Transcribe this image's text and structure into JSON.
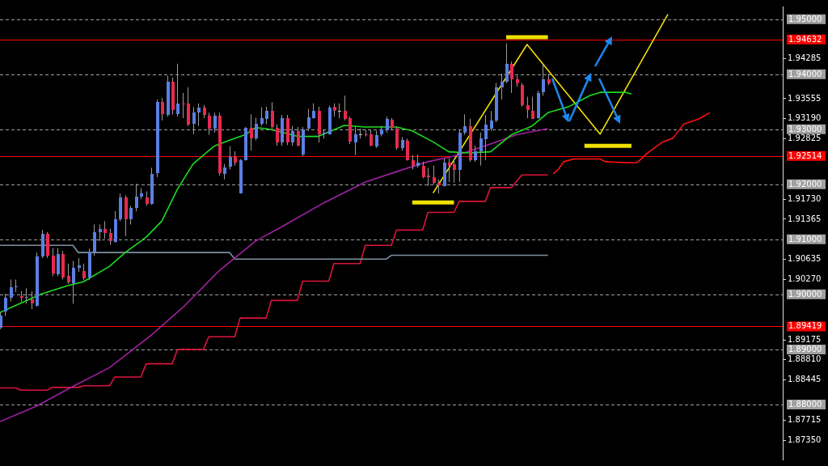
{
  "chart_data": {
    "type": "candlestick",
    "categories": [
      null,
      null,
      null,
      null,
      null,
      null,
      null,
      null,
      null,
      null,
      null,
      null,
      null,
      null,
      null,
      null,
      null,
      null,
      null,
      null,
      null,
      null,
      null,
      null,
      null,
      null,
      null,
      null,
      null,
      null,
      null,
      null,
      null,
      null,
      null,
      null,
      null,
      null,
      null,
      null,
      null,
      null,
      null,
      null,
      null,
      null,
      null,
      null,
      null,
      null,
      null,
      null,
      null,
      null,
      null,
      null,
      null,
      null,
      null,
      null,
      null,
      null,
      null,
      null,
      null,
      null,
      null,
      null,
      null,
      null,
      null,
      null,
      null,
      null,
      null,
      null,
      null,
      null,
      null,
      null,
      null,
      null,
      null,
      null,
      null,
      null,
      null,
      null,
      null,
      null,
      null,
      null,
      null,
      null,
      null,
      null,
      null,
      null,
      null,
      null,
      null,
      null,
      null,
      null,
      null,
      null,
      null,
      null,
      null,
      null,
      null,
      null,
      null,
      null,
      null,
      null,
      null,
      null,
      null,
      null,
      null,
      null,
      null,
      null,
      null,
      null,
      null,
      null,
      null,
      null,
      null,
      null,
      null,
      null,
      null,
      null,
      null,
      null,
      null,
      null,
      null,
      null,
      null,
      null,
      null,
      null,
      null,
      null,
      null,
      null,
      null
    ],
    "ohlc": [
      [
        1.8939,
        1.8967,
        1.8937,
        1.8961
      ],
      [
        1.8969,
        1.9001,
        1.8961,
        1.8994
      ],
      [
        1.8994,
        1.9027,
        1.8987,
        1.9013
      ],
      [
        1.9013,
        1.9027,
        1.9004,
        1.9014
      ],
      [
        1.8997,
        1.9006,
        1.8987,
        1.8994
      ],
      [
        1.8994,
        1.9011,
        1.8983,
        1.8995
      ],
      [
        1.8991,
        1.9006,
        1.8973,
        1.8983
      ],
      [
        1.898,
        1.9076,
        1.8978,
        1.9069
      ],
      [
        1.9069,
        1.9117,
        1.9066,
        1.911
      ],
      [
        1.911,
        1.9113,
        1.9066,
        1.907
      ],
      [
        1.907,
        1.9084,
        1.9033,
        1.9037
      ],
      [
        1.9037,
        1.9084,
        1.9033,
        1.9074
      ],
      [
        1.9074,
        1.9079,
        1.9027,
        1.9031
      ],
      [
        1.9033,
        1.9056,
        1.9019,
        1.9021
      ],
      [
        1.9021,
        1.9061,
        1.8983,
        1.9049
      ],
      [
        1.9049,
        1.9066,
        1.9041,
        1.9053
      ],
      [
        1.9043,
        1.9056,
        1.9026,
        1.903
      ],
      [
        1.903,
        1.9083,
        1.9026,
        1.9076
      ],
      [
        1.9076,
        1.9127,
        1.907,
        1.9113
      ],
      [
        1.9113,
        1.9127,
        1.9097,
        1.9119
      ],
      [
        1.9119,
        1.9133,
        1.9101,
        1.9111
      ],
      [
        1.9111,
        1.9119,
        1.909,
        1.9096
      ],
      [
        1.9096,
        1.9151,
        1.9094,
        1.9137
      ],
      [
        1.9137,
        1.9183,
        1.9133,
        1.9176
      ],
      [
        1.9176,
        1.918,
        1.9106,
        1.9136
      ],
      [
        1.9136,
        1.9161,
        1.9127,
        1.9157
      ],
      [
        1.9157,
        1.9201,
        1.9151,
        1.9177
      ],
      [
        1.9177,
        1.9193,
        1.9173,
        1.9183
      ],
      [
        1.9176,
        1.9187,
        1.9161,
        1.9164
      ],
      [
        1.9164,
        1.923,
        1.9163,
        1.9219
      ],
      [
        1.922,
        1.9354,
        1.9213,
        1.935
      ],
      [
        1.9349,
        1.9357,
        1.9316,
        1.9327
      ],
      [
        1.9326,
        1.9397,
        1.9323,
        1.9386
      ],
      [
        1.9386,
        1.9394,
        1.9327,
        1.9334
      ],
      [
        1.9327,
        1.9419,
        1.9323,
        1.9346
      ],
      [
        1.9347,
        1.9366,
        1.932,
        1.9346
      ],
      [
        1.9347,
        1.9376,
        1.9306,
        1.9309
      ],
      [
        1.9309,
        1.934,
        1.9291,
        1.933
      ],
      [
        1.933,
        1.9347,
        1.9306,
        1.9339
      ],
      [
        1.9339,
        1.9344,
        1.932,
        1.9326
      ],
      [
        1.9324,
        1.933,
        1.929,
        1.93
      ],
      [
        1.93,
        1.933,
        1.9294,
        1.9324
      ],
      [
        1.9324,
        1.933,
        1.9216,
        1.9219
      ],
      [
        1.9219,
        1.9237,
        1.9209,
        1.9231
      ],
      [
        1.9231,
        1.9269,
        1.9227,
        1.9249
      ],
      [
        1.9249,
        1.926,
        1.9234,
        1.9239
      ],
      [
        1.9184,
        1.9246,
        1.9183,
        1.9244
      ],
      [
        1.9244,
        1.9304,
        1.9243,
        1.9303
      ],
      [
        1.9303,
        1.9327,
        1.9261,
        1.9284
      ],
      [
        1.9284,
        1.9321,
        1.928,
        1.931
      ],
      [
        1.931,
        1.934,
        1.9306,
        1.932
      ],
      [
        1.9319,
        1.9341,
        1.9309,
        1.9333
      ],
      [
        1.9333,
        1.9349,
        1.9299,
        1.9303
      ],
      [
        1.9303,
        1.9309,
        1.927,
        1.9276
      ],
      [
        1.9276,
        1.9326,
        1.927,
        1.932
      ],
      [
        1.932,
        1.9326,
        1.9271,
        1.9276
      ],
      [
        1.9276,
        1.9306,
        1.927,
        1.9297
      ],
      [
        1.9297,
        1.9304,
        1.9269,
        1.9271
      ],
      [
        1.9253,
        1.9304,
        1.9251,
        1.9299
      ],
      [
        1.93,
        1.9337,
        1.9297,
        1.9321
      ],
      [
        1.9321,
        1.9347,
        1.9319,
        1.9334
      ],
      [
        1.9334,
        1.9341,
        1.9276,
        1.9291
      ],
      [
        1.9291,
        1.9299,
        1.9283,
        1.9294
      ],
      [
        1.9291,
        1.9343,
        1.929,
        1.9339
      ],
      [
        1.9341,
        1.9347,
        1.9323,
        1.9333
      ],
      [
        1.9333,
        1.9347,
        1.932,
        1.9333
      ],
      [
        1.9333,
        1.9361,
        1.9316,
        1.9319
      ],
      [
        1.932,
        1.9323,
        1.9273,
        1.9277
      ],
      [
        1.9277,
        1.9304,
        1.9253,
        1.9291
      ],
      [
        1.9291,
        1.9301,
        1.9283,
        1.9291
      ],
      [
        1.9291,
        1.9299,
        1.9287,
        1.929
      ],
      [
        1.9291,
        1.9299,
        1.9269,
        1.927
      ],
      [
        1.927,
        1.9297,
        1.9266,
        1.929
      ],
      [
        1.929,
        1.9306,
        1.9287,
        1.9299
      ],
      [
        1.9299,
        1.9323,
        1.9294,
        1.9319
      ],
      [
        1.9317,
        1.932,
        1.9299,
        1.9303
      ],
      [
        1.9301,
        1.9304,
        1.9263,
        1.9266
      ],
      [
        1.9266,
        1.9286,
        1.9261,
        1.928
      ],
      [
        1.9279,
        1.9283,
        1.9243,
        1.9244
      ],
      [
        1.9244,
        1.9253,
        1.9227,
        1.9233
      ],
      [
        1.9234,
        1.9254,
        1.923,
        1.924
      ],
      [
        1.9234,
        1.9241,
        1.9211,
        1.9214
      ],
      [
        1.9216,
        1.923,
        1.9197,
        1.9213
      ],
      [
        1.9213,
        1.9234,
        1.92,
        1.9203
      ],
      [
        1.9203,
        1.9209,
        1.9183,
        1.9199
      ],
      [
        1.9197,
        1.9247,
        1.9196,
        1.924
      ],
      [
        1.924,
        1.9247,
        1.9204,
        1.9234
      ],
      [
        1.9237,
        1.9247,
        1.9203,
        1.9226
      ],
      [
        1.9227,
        1.9299,
        1.9204,
        1.9294
      ],
      [
        1.9294,
        1.9327,
        1.929,
        1.9306
      ],
      [
        1.9306,
        1.9319,
        1.9241,
        1.9244
      ],
      [
        1.9244,
        1.927,
        1.9241,
        1.926
      ],
      [
        1.926,
        1.9294,
        1.9234,
        1.9283
      ],
      [
        1.9283,
        1.9326,
        1.9244,
        1.9309
      ],
      [
        1.9301,
        1.9333,
        1.9297,
        1.9316
      ],
      [
        1.9316,
        1.9384,
        1.9313,
        1.9376
      ],
      [
        1.9376,
        1.9401,
        1.9354,
        1.9387
      ],
      [
        1.9387,
        1.9456,
        1.9384,
        1.9419
      ],
      [
        1.9419,
        1.9423,
        1.9366,
        1.9391
      ],
      [
        1.9391,
        1.9397,
        1.9377,
        1.9383
      ],
      [
        1.938,
        1.9384,
        1.9341,
        1.9343
      ],
      [
        1.9343,
        1.9359,
        1.932,
        1.9334
      ],
      [
        1.9334,
        1.9359,
        1.9319,
        1.932
      ],
      [
        1.932,
        1.937,
        1.9319,
        1.9366
      ],
      [
        1.9366,
        1.9419,
        1.9361,
        1.939
      ],
      [
        1.939,
        1.9401,
        1.938,
        1.9383
      ],
      null,
      null,
      null,
      null,
      null,
      null,
      null,
      null,
      null,
      null,
      null,
      null,
      null,
      null,
      null,
      null,
      null,
      null,
      null,
      null,
      null,
      null,
      null,
      null,
      null,
      null,
      null,
      null,
      null,
      null,
      null,
      null,
      null,
      null,
      null,
      null,
      null,
      null,
      null,
      null,
      null,
      null,
      null,
      null,
      null
    ],
    "colors": [
      "#5b7fe3",
      "#5b7fe3",
      "#5b7fe3",
      "#5b7fe3",
      "#e8294e",
      "#5b7fe3",
      "#e8294e",
      "#5b7fe3",
      "#5b7fe3",
      "#e8294e",
      "#e8294e",
      "#5b7fe3",
      "#e8294e",
      "#e8294e",
      "#5b7fe3",
      "#5b7fe3",
      "#e8294e",
      "#5b7fe3",
      "#5b7fe3",
      "#5b7fe3",
      "#e8294e",
      "#e8294e",
      "#5b7fe3",
      "#5b7fe3",
      "#e8294e",
      "#5b7fe3",
      "#5b7fe3",
      "#5b7fe3",
      "#e8294e",
      "#5b7fe3",
      "#5b7fe3",
      "#e8294e",
      "#5b7fe3",
      "#e8294e",
      "#5b7fe3",
      "#e8294e",
      "#e8294e",
      "#5b7fe3",
      "#5b7fe3",
      "#e8294e",
      "#e8294e",
      "#5b7fe3",
      "#e8294e",
      "#5b7fe3",
      "#5b7fe3",
      "#e8294e",
      "#5b7fe3",
      "#5b7fe3",
      "#e8294e",
      "#5b7fe3",
      "#5b7fe3",
      "#5b7fe3",
      "#e8294e",
      "#e8294e",
      "#5b7fe3",
      "#e8294e",
      "#5b7fe3",
      "#e8294e",
      "#5b7fe3",
      "#5b7fe3",
      "#5b7fe3",
      "#e8294e",
      "#5b7fe3",
      "#5b7fe3",
      "#e8294e",
      "#c0c0c0",
      "#e8294e",
      "#e8294e",
      "#5b7fe3",
      "#c0c0c0",
      "#e8294e",
      "#e8294e",
      "#5b7fe3",
      "#5b7fe3",
      "#5b7fe3",
      "#e8294e",
      "#e8294e",
      "#5b7fe3",
      "#e8294e",
      "#e8294e",
      "#5b7fe3",
      "#e8294e",
      "#e8294e",
      "#e8294e",
      "#e8294e",
      "#5b7fe3",
      "#e8294e",
      "#e8294e",
      "#5b7fe3",
      "#5b7fe3",
      "#e8294e",
      "#5b7fe3",
      "#5b7fe3",
      "#5b7fe3",
      "#5b7fe3",
      "#5b7fe3",
      "#5b7fe3",
      "#5b7fe3",
      "#e8294e",
      "#e8294e",
      "#e8294e",
      "#e8294e",
      "#e8294e",
      "#5b7fe3",
      "#5b7fe3",
      "#e8294e",
      null,
      null,
      null,
      null,
      null,
      null,
      null,
      null,
      null,
      null,
      null,
      null,
      null,
      null,
      null,
      null,
      null,
      null,
      null,
      null,
      null,
      null,
      null,
      null,
      null,
      null,
      null,
      null,
      null,
      null,
      null,
      null,
      null,
      null,
      null,
      null,
      null,
      null,
      null,
      null,
      null,
      null,
      null,
      null,
      null
    ],
    "series": [
      {
        "type": "line",
        "color": "#1edc1e",
        "values": [
          1.8967,
          null,
          null,
          1.898,
          null,
          null,
          null,
          null,
          1.9001,
          null,
          null,
          null,
          null,
          1.9016,
          null,
          null,
          1.9023,
          null,
          null,
          null,
          null,
          1.9051,
          null,
          null,
          1.9076,
          null,
          null,
          1.9097,
          1.9104,
          null,
          null,
          1.9133,
          null,
          null,
          1.9191,
          null,
          null,
          1.9237,
          null,
          null,
          null,
          1.9269,
          null,
          null,
          1.928,
          null,
          null,
          1.929,
          null,
          1.9303,
          null,
          1.9301,
          null,
          1.9297,
          null,
          null,
          null,
          1.9287,
          null,
          null,
          null,
          1.9287,
          null,
          null,
          null,
          null,
          1.9307,
          null,
          null,
          null,
          1.9304,
          null,
          null,
          null,
          null,
          null,
          1.9304,
          null,
          null,
          1.9297,
          null,
          null,
          null,
          1.9277,
          null,
          null,
          1.9259,
          null,
          null,
          null,
          1.9257,
          null,
          null,
          null,
          1.9259,
          null,
          null,
          null,
          1.929,
          null,
          null,
          null,
          1.9306,
          null,
          null,
          1.933,
          null,
          null,
          null,
          1.9341,
          null,
          null,
          null,
          1.9361,
          null,
          1.9367,
          null,
          null,
          null,
          null,
          1.9367,
          1.9364,
          null,
          null,
          null,
          null,
          null,
          null,
          null,
          null,
          null,
          null,
          null,
          null,
          null,
          null,
          null,
          null,
          null,
          null,
          null,
          null,
          null,
          null,
          null,
          null,
          null,
          null,
          null,
          null,
          null
        ]
      },
      {
        "type": "line",
        "color": "#a020a0",
        "values": [
          1.8769,
          null,
          null,
          null,
          null,
          null,
          null,
          1.8797,
          null,
          null,
          null,
          null,
          null,
          null,
          1.8833,
          null,
          null,
          null,
          null,
          null,
          null,
          1.8867,
          null,
          null,
          null,
          null,
          null,
          null,
          null,
          1.8926,
          null,
          null,
          null,
          null,
          null,
          1.8976,
          null,
          null,
          null,
          null,
          null,
          null,
          1.9043,
          null,
          null,
          null,
          null,
          null,
          null,
          1.9097,
          null,
          null,
          null,
          null,
          1.9123,
          null,
          null,
          null,
          null,
          null,
          null,
          null,
          1.9166,
          null,
          null,
          null,
          null,
          null,
          null,
          null,
          1.9204,
          null,
          null,
          null,
          null,
          null,
          1.9223,
          null,
          null,
          null,
          null,
          null,
          1.9241,
          null,
          null,
          null,
          null,
          1.9251,
          null,
          null,
          null,
          null,
          null,
          1.927,
          null,
          null,
          null,
          null,
          null,
          1.929,
          null,
          null,
          null,
          null,
          null,
          1.9301,
          null,
          null,
          null,
          null,
          null,
          null,
          null,
          null,
          null,
          null,
          null,
          null,
          null,
          null,
          null,
          null,
          null,
          null,
          null,
          null,
          null,
          null,
          null,
          null,
          null,
          null,
          null,
          null,
          null,
          null,
          null,
          null,
          null,
          null,
          null,
          null,
          null,
          null,
          null,
          null,
          null,
          null,
          null,
          null,
          null
        ]
      },
      {
        "type": "line",
        "color": "#8090a4",
        "values": [
          1.9089,
          null,
          null,
          null,
          null,
          null,
          null,
          null,
          null,
          null,
          null,
          null,
          null,
          null,
          1.9089,
          1.9076,
          null,
          null,
          null,
          null,
          null,
          null,
          null,
          null,
          null,
          null,
          null,
          null,
          null,
          null,
          null,
          null,
          null,
          null,
          null,
          null,
          null,
          null,
          null,
          null,
          null,
          null,
          null,
          null,
          1.9076,
          1.9064,
          null,
          null,
          null,
          null,
          null,
          null,
          null,
          null,
          null,
          null,
          null,
          null,
          null,
          null,
          null,
          null,
          null,
          null,
          null,
          null,
          null,
          null,
          null,
          null,
          null,
          null,
          null,
          null,
          1.9064,
          1.9071,
          null,
          null,
          null,
          null,
          null,
          null,
          null,
          null,
          null,
          null,
          null,
          null,
          null,
          null,
          null,
          null,
          null,
          null,
          null,
          null,
          null,
          null,
          null,
          null,
          null,
          null,
          null,
          null,
          null,
          1.9071,
          null,
          null,
          null,
          null,
          null,
          null,
          null,
          null,
          null,
          null,
          null,
          null,
          null,
          null,
          null,
          null,
          null,
          null,
          null,
          null,
          null,
          null,
          null,
          null,
          null,
          null,
          null,
          null,
          null,
          null,
          null,
          null,
          null,
          null,
          null,
          null,
          null,
          null,
          null,
          null,
          null,
          null,
          null,
          null,
          null
        ]
      },
      {
        "type": "line",
        "color": "#dc143c",
        "values": [
          1.883,
          null,
          null,
          1.883,
          1.8826,
          null,
          null,
          null,
          null,
          1.8826,
          1.8831,
          null,
          null,
          null,
          null,
          1.8831,
          1.8834,
          null,
          null,
          null,
          null,
          1.8834,
          1.885,
          null,
          null,
          null,
          null,
          1.885,
          1.8874,
          null,
          null,
          null,
          null,
          1.8874,
          1.89,
          null,
          null,
          null,
          null,
          1.89,
          1.8923,
          null,
          null,
          null,
          null,
          1.8923,
          1.8957,
          null,
          null,
          null,
          null,
          1.8957,
          1.8989,
          null,
          null,
          null,
          null,
          1.8989,
          1.9024,
          null,
          null,
          null,
          null,
          1.9024,
          1.9056,
          null,
          null,
          null,
          null,
          1.9056,
          1.9089,
          null,
          null,
          null,
          null,
          1.9089,
          1.9117,
          null,
          null,
          null,
          null,
          1.9117,
          1.9149,
          null,
          null,
          null,
          null,
          1.9149,
          1.9169,
          null,
          null,
          null,
          null,
          1.9169,
          1.9194,
          null,
          null,
          null,
          1.9194,
          null,
          1.9217,
          null,
          null,
          null,
          null,
          1.9217,
          null,
          null,
          null,
          null,
          null,
          null,
          null,
          null,
          null,
          null,
          null,
          null,
          null,
          null,
          null,
          null,
          null,
          null,
          null,
          null,
          null,
          null,
          null,
          null,
          null,
          null,
          null,
          null,
          null,
          null,
          null,
          null,
          null,
          null,
          null,
          null,
          null,
          null,
          null,
          null,
          null,
          null,
          null,
          null,
          null
        ]
      },
      {
        "type": "line",
        "color": "#ff1010",
        "values": [
          null,
          null,
          null,
          null,
          null,
          null,
          null,
          null,
          null,
          null,
          null,
          null,
          null,
          null,
          null,
          null,
          null,
          null,
          null,
          null,
          null,
          null,
          null,
          null,
          null,
          null,
          null,
          null,
          null,
          null,
          null,
          null,
          null,
          null,
          null,
          null,
          null,
          null,
          null,
          null,
          null,
          null,
          null,
          null,
          null,
          null,
          null,
          null,
          null,
          null,
          null,
          null,
          null,
          null,
          null,
          null,
          null,
          null,
          null,
          null,
          null,
          null,
          null,
          null,
          null,
          null,
          null,
          null,
          null,
          null,
          null,
          null,
          null,
          null,
          null,
          null,
          null,
          null,
          null,
          null,
          null,
          null,
          null,
          null,
          null,
          null,
          null,
          null,
          null,
          null,
          null,
          null,
          null,
          null,
          null,
          null,
          null,
          null,
          null,
          null,
          null,
          null,
          null,
          null,
          null,
          null,
          1.9219,
          1.9227,
          1.9241,
          null,
          1.9246,
          null,
          null,
          null,
          null,
          1.9246,
          1.9241,
          null,
          1.924,
          null,
          null,
          null,
          1.9239,
          1.9247,
          1.9256,
          null,
          1.927,
          1.9277,
          null,
          1.9284,
          null,
          1.9309,
          null,
          null,
          1.9319,
          null,
          1.933,
          null,
          null,
          null,
          null,
          null,
          null,
          null,
          null,
          null,
          null,
          null,
          null,
          null,
          null
        ]
      },
      {
        "type": "line",
        "color": "#f0e000",
        "values": [
          null,
          null,
          null,
          null,
          null,
          null,
          null,
          null,
          null,
          null,
          null,
          null,
          null,
          null,
          null,
          null,
          null,
          null,
          null,
          null,
          null,
          null,
          null,
          null,
          null,
          null,
          null,
          null,
          null,
          null,
          null,
          null,
          null,
          null,
          null,
          null,
          null,
          null,
          null,
          null,
          null,
          null,
          null,
          null,
          null,
          null,
          null,
          null,
          null,
          null,
          null,
          null,
          null,
          null,
          null,
          null,
          null,
          null,
          null,
          null,
          null,
          null,
          null,
          null,
          null,
          null,
          null,
          null,
          null,
          null,
          null,
          null,
          null,
          null,
          null,
          null,
          null,
          null,
          null,
          null,
          null,
          null,
          null,
          1.9184,
          null,
          null,
          null,
          null,
          null,
          null,
          null,
          null,
          null,
          null,
          null,
          null,
          null,
          null,
          null,
          null,
          null,
          1.9454,
          null,
          null,
          null,
          null,
          null,
          null,
          null,
          null,
          null,
          null,
          null,
          null,
          null,
          1.9291,
          null,
          null,
          null,
          null,
          null,
          null,
          null,
          null,
          null,
          null,
          null,
          null,
          1.9509,
          null,
          null,
          null,
          null,
          null,
          null,
          null,
          null,
          null,
          null,
          null,
          null,
          null,
          null,
          null,
          null,
          null,
          null,
          null,
          null,
          null,
          null
        ]
      },
      {
        "type": "line",
        "color": "#f0e000",
        "values": [
          null,
          null,
          null,
          null,
          null,
          null,
          null,
          null,
          null,
          null,
          null,
          null,
          null,
          null,
          null,
          null,
          null,
          null,
          null,
          null,
          null,
          null,
          null,
          null,
          null,
          null,
          null,
          null,
          null,
          null,
          null,
          null,
          null,
          null,
          null,
          null,
          null,
          null,
          null,
          null,
          null,
          null,
          null,
          null,
          null,
          null,
          null,
          null,
          null,
          null,
          null,
          null,
          null,
          null,
          null,
          null,
          null,
          null,
          null,
          null,
          null,
          null,
          null,
          null,
          null,
          null,
          null,
          null,
          null,
          null,
          null,
          null,
          null,
          null,
          null,
          null,
          null,
          null,
          null,
          null,
          null,
          null,
          null,
          null,
          null,
          null,
          null,
          null,
          null,
          null,
          null,
          null,
          null,
          null,
          null,
          null,
          null,
          1.9467,
          1.9467,
          1.9467,
          1.9467,
          1.9467,
          1.9467,
          1.9467,
          1.9467,
          1.9467,
          null,
          null,
          null,
          null,
          null,
          null,
          null,
          null,
          null,
          null,
          null,
          null,
          null,
          null,
          null,
          null,
          null,
          null,
          null,
          null,
          null,
          null,
          null,
          null,
          null,
          null,
          null,
          null,
          null,
          null,
          null,
          null,
          null,
          null,
          null,
          null,
          null,
          null,
          null,
          null,
          null,
          null,
          null,
          null,
          null
        ]
      },
      {
        "type": "line",
        "color": "#f0e000",
        "values": [
          null,
          null,
          null,
          null,
          null,
          null,
          null,
          null,
          null,
          null,
          null,
          null,
          null,
          null,
          null,
          null,
          null,
          null,
          null,
          null,
          null,
          null,
          null,
          null,
          null,
          null,
          null,
          null,
          null,
          null,
          null,
          null,
          null,
          null,
          null,
          null,
          null,
          null,
          null,
          null,
          null,
          null,
          null,
          null,
          null,
          null,
          null,
          null,
          null,
          null,
          null,
          null,
          null,
          null,
          null,
          null,
          null,
          null,
          null,
          null,
          null,
          null,
          null,
          null,
          null,
          null,
          null,
          null,
          null,
          null,
          null,
          null,
          null,
          null,
          null,
          null,
          null,
          null,
          null,
          1.9167,
          1.9167,
          1.9167,
          1.9167,
          1.9167,
          1.9167,
          1.9167,
          1.9167,
          1.9167,
          null,
          null,
          null,
          null,
          null,
          null,
          null,
          null,
          null,
          null,
          null,
          null,
          null,
          null,
          null,
          null,
          null,
          null,
          null,
          null,
          null,
          null,
          null,
          null,
          null,
          null,
          null,
          null,
          null,
          null,
          null,
          null,
          null,
          null,
          null,
          null,
          null,
          null,
          null,
          null,
          null,
          null,
          null,
          null,
          null,
          null,
          null,
          null,
          null,
          null,
          null,
          null,
          null,
          null,
          null,
          null,
          null,
          null,
          null,
          null,
          null,
          null,
          null
        ]
      },
      {
        "type": "line",
        "color": "#f0e000",
        "values": [
          null,
          null,
          null,
          null,
          null,
          null,
          null,
          null,
          null,
          null,
          null,
          null,
          null,
          null,
          null,
          null,
          null,
          null,
          null,
          null,
          null,
          null,
          null,
          null,
          null,
          null,
          null,
          null,
          null,
          null,
          null,
          null,
          null,
          null,
          null,
          null,
          null,
          null,
          null,
          null,
          null,
          null,
          null,
          null,
          null,
          null,
          null,
          null,
          null,
          null,
          null,
          null,
          null,
          null,
          null,
          null,
          null,
          null,
          null,
          null,
          null,
          null,
          null,
          null,
          null,
          null,
          null,
          null,
          null,
          null,
          null,
          null,
          null,
          null,
          null,
          null,
          null,
          null,
          null,
          null,
          null,
          null,
          null,
          null,
          null,
          null,
          null,
          null,
          null,
          null,
          null,
          null,
          null,
          null,
          null,
          null,
          null,
          null,
          null,
          null,
          null,
          null,
          null,
          null,
          null,
          null,
          null,
          null,
          null,
          null,
          null,
          null,
          1.927,
          1.927,
          1.927,
          1.927,
          1.927,
          1.927,
          1.927,
          1.927,
          1.927,
          1.927,
          null,
          null,
          null,
          null,
          null,
          null,
          null,
          null,
          null,
          null,
          null,
          null,
          null,
          null,
          null,
          null,
          null,
          null,
          null,
          null,
          null,
          null,
          null,
          null,
          null,
          null,
          null,
          null,
          null
        ]
      }
    ],
    "ylim": [
      1.87,
      1.9523
    ],
    "yticks": [
      1.94285,
      1.93555,
      {
        "value": 1.9319,
        "label": "1.93190"
      },
      1.92825,
      {
        "value": 1.9173,
        "label": "1.91730"
      },
      1.91365,
      1.90635,
      {
        "value": 1.9027,
        "label": "1.90270"
      },
      1.89175,
      {
        "value": 1.8881,
        "label": "1.88810"
      },
      1.88445,
      1.87715,
      {
        "value": 1.8735,
        "label": "1.87350"
      }
    ],
    "ref_lines": [
      {
        "axis": "y",
        "value": 1.95,
        "label": "1.95000",
        "color": "#a0a0a0",
        "line_style": "dashed"
      },
      {
        "axis": "y",
        "value": 1.94,
        "label": "1.94000",
        "color": "#a0a0a0",
        "line_style": "dashed"
      },
      {
        "axis": "y",
        "value": 1.93,
        "label": "1.93000",
        "color": "#a0a0a0",
        "line_style": "dashed"
      },
      {
        "axis": "y",
        "value": 1.92,
        "label": "1.92000",
        "color": "#a0a0a0",
        "line_style": "dashed"
      },
      {
        "axis": "y",
        "value": 1.91,
        "label": "1.91000",
        "color": "#a0a0a0",
        "line_style": "dashed"
      },
      {
        "axis": "y",
        "value": 1.9,
        "label": "1.90000",
        "color": "#a0a0a0",
        "line_style": "dashed"
      },
      {
        "axis": "y",
        "value": 1.89,
        "label": "1.89000",
        "color": "#a0a0a0",
        "line_style": "dashed"
      },
      {
        "axis": "y",
        "value": 1.88,
        "label": "1.88000",
        "color": "#a0a0a0",
        "line_style": "dashed"
      },
      {
        "axis": "y",
        "value": 1.94632,
        "label": "1.94632",
        "color": "#ff0000",
        "line_style": "solid"
      },
      {
        "axis": "y",
        "value": 1.92514,
        "label": "1.92514",
        "color": "#ff0000",
        "line_style": "solid"
      },
      {
        "axis": "y",
        "value": 1.89419,
        "label": "1.89419",
        "color": "#ff0000",
        "line_style": "solid"
      }
    ],
    "tick_labels": "y",
    "legend": false,
    "marker": "none"
  }
}
